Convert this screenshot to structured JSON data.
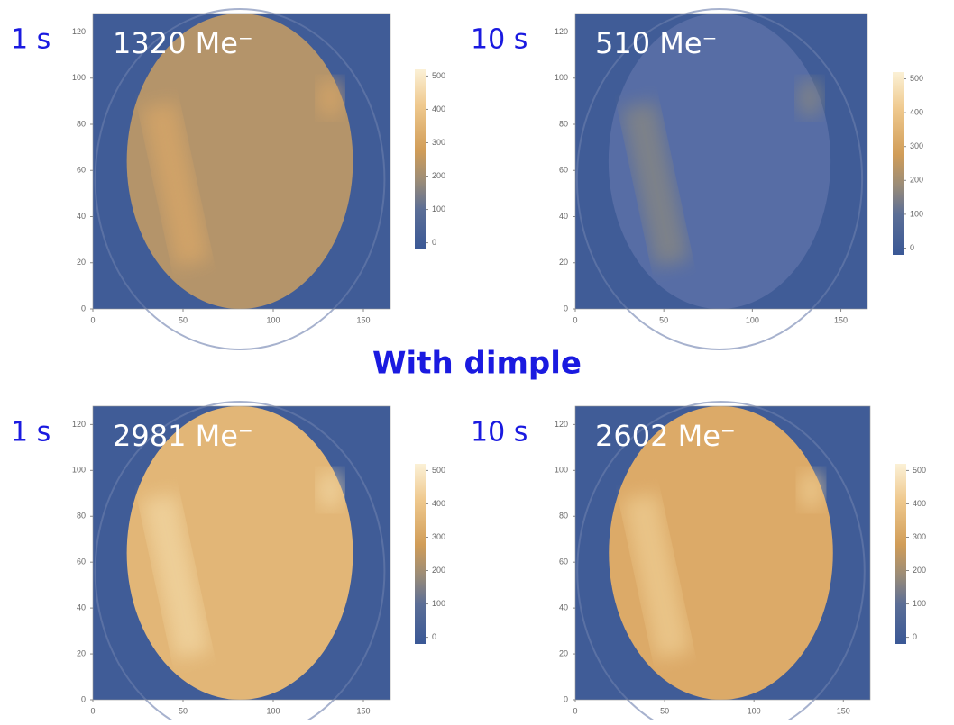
{
  "heading": "With dimple",
  "panels": [
    {
      "time": "1 s",
      "count": "1320 Me⁻"
    },
    {
      "time": "10 s",
      "count": "510 Me⁻"
    },
    {
      "time": "1 s",
      "count": "2981 Me⁻"
    },
    {
      "time": "10 s",
      "count": "2602 Me⁻"
    }
  ],
  "axes": {
    "xlim": [
      0,
      165
    ],
    "ylim": [
      0,
      128
    ],
    "xticks": [
      0,
      50,
      100,
      150
    ],
    "yticks": [
      0,
      20,
      40,
      60,
      80,
      100,
      120
    ],
    "colorbar_lim": [
      -20,
      520
    ],
    "colorbar_ticks": [
      0,
      100,
      200,
      300,
      400,
      500
    ]
  }
}
